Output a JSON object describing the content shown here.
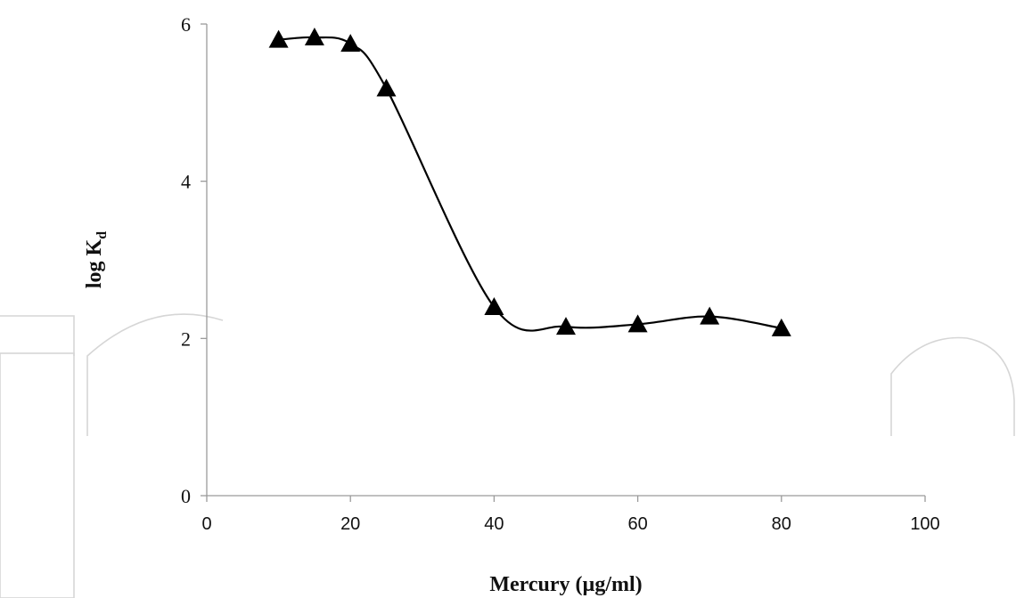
{
  "chart_data": {
    "type": "line",
    "title": "",
    "xlabel": "Mercury (µg/ml)",
    "ylabel_main": "log K",
    "ylabel_sub": "d",
    "xlim": [
      0,
      100
    ],
    "ylim": [
      0,
      6
    ],
    "x_ticks": [
      0,
      20,
      40,
      60,
      80,
      100
    ],
    "y_ticks": [
      0,
      2,
      4,
      6
    ],
    "grid": false,
    "marker": "triangle",
    "smooth": true,
    "series": [
      {
        "x": [
          10,
          15,
          20,
          25,
          40,
          50,
          60,
          70,
          80
        ],
        "y": [
          5.8,
          5.83,
          5.75,
          5.18,
          2.4,
          2.15,
          2.18,
          2.28,
          2.13
        ]
      }
    ]
  }
}
